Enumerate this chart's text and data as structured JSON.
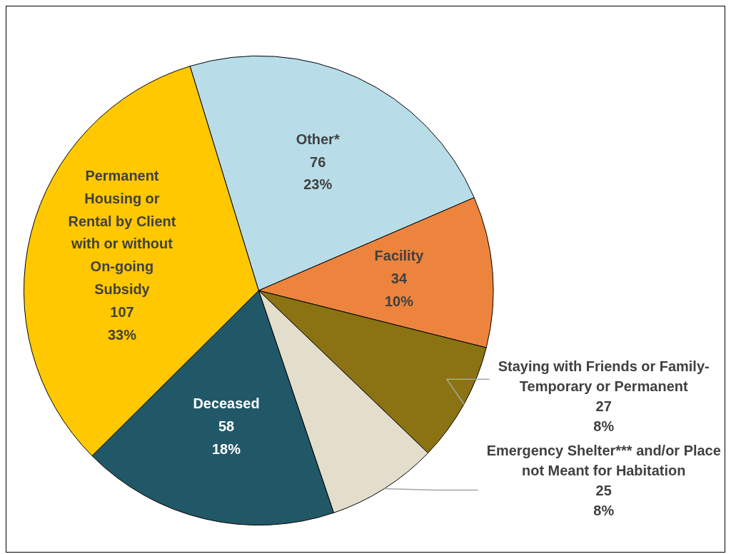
{
  "chart_data": {
    "type": "pie",
    "categories": [
      "Other*",
      "Facility",
      "Staying with Friends or Family- Temporary or Permanent",
      "Emergency Shelter*** and/or Place not Meant for Habitation",
      "Deceased",
      "Permanent Housing or Rental by Client with or without On-going Subsidy"
    ],
    "values": [
      76,
      34,
      27,
      25,
      58,
      107
    ],
    "value_labels": [
      "76\n23%",
      "34\n10%",
      "27\n8%",
      "25\n8%",
      "58\n18%",
      "107\n33%"
    ],
    "colors": [
      "#b8dde8",
      "#ed843e",
      "#8b7314",
      "#e3ddcc",
      "#215868",
      "#ffc800"
    ]
  }
}
